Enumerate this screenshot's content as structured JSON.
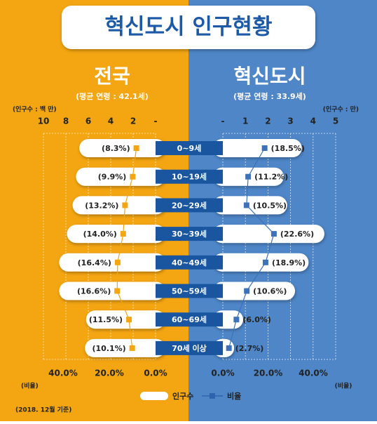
{
  "chart_data": {
    "type": "butterfly",
    "title": "혁신도시 인구현황",
    "categories": [
      "0~9세",
      "10~19세",
      "20~29세",
      "30~39세",
      "40~49세",
      "50~59세",
      "60~69세",
      "70세 이상"
    ],
    "bar_name": "인구수",
    "line_name": "비율",
    "note": "(2018. 12월 기준)",
    "panels": [
      {
        "title": "전국",
        "subtitle": "(평균 연령 : 42.1세)",
        "unit_label": "(인구수 : 백 만)",
        "xlim": [
          0,
          10
        ],
        "xticks": [
          10,
          8,
          6,
          4,
          2,
          {
            "value": 0,
            "label": "-"
          }
        ],
        "values": [
          6.8,
          7.1,
          7.4,
          7.9,
          8.6,
          8.6,
          6.2,
          6.3
        ],
        "color": "#f3a512",
        "ratio": {
          "values": [
            8.3,
            9.9,
            13.2,
            14.0,
            16.4,
            16.6,
            11.5,
            10.1
          ],
          "value_labels": [
            "(8.3%)",
            "(9.9%)",
            "(13.2%)",
            "(14.0%)",
            "(16.4%)",
            "(16.6%)",
            "(11.5%)",
            "(10.1%)"
          ],
          "xlim": [
            0,
            40
          ],
          "xticks": [
            {
              "value": 40,
              "label": "40.0%"
            },
            {
              "value": 20,
              "label": "20.0%"
            },
            {
              "value": 0,
              "label": "0.0%"
            }
          ],
          "axis_label": "(비율)"
        }
      },
      {
        "title": "혁신도시",
        "subtitle": "(평균 연령 : 33.9세)",
        "unit_label": "(인구수 : 만)",
        "xlim": [
          0,
          5
        ],
        "xticks": [
          {
            "value": 0,
            "label": "-"
          },
          1,
          2,
          3,
          4,
          5
        ],
        "values": [
          3.5,
          2.7,
          2.85,
          4.5,
          3.8,
          3.2,
          0.9,
          0.5
        ],
        "color": "#3d72b8",
        "ratio": {
          "values": [
            18.5,
            11.2,
            10.5,
            22.6,
            18.9,
            10.6,
            6.0,
            2.7
          ],
          "value_labels": [
            "(18.5%)",
            "(11.2%)",
            "(10.5%)",
            "(22.6%)",
            "(18.9%)",
            "(10.6%)",
            "(6.0%)",
            "(2.7%)"
          ],
          "xlim": [
            0,
            40
          ],
          "xticks": [
            {
              "value": 0,
              "label": "0.0%"
            },
            {
              "value": 20,
              "label": "20.0%"
            },
            {
              "value": 40,
              "label": "40.0%"
            }
          ],
          "axis_label": "(비율)"
        }
      }
    ]
  }
}
